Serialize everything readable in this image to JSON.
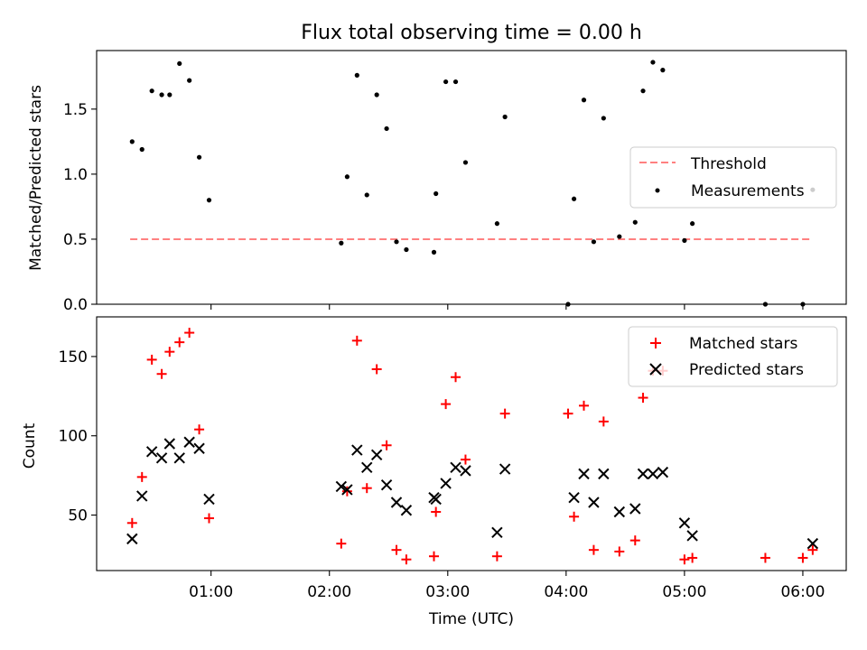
{
  "chart_data": [
    {
      "type": "scatter",
      "title": "Flux total observing time = 0.00 h",
      "xlabel": "",
      "ylabel": "Matched/Predicted stars",
      "ylim": [
        0,
        1.95
      ],
      "xlim": [
        "00:02",
        "06:22"
      ],
      "yticks": [
        0.0,
        0.5,
        1.0,
        1.5
      ],
      "ytick_labels": [
        "0.0",
        "0.5",
        "1.0",
        "1.5"
      ],
      "legend_position": "center-right",
      "grid": false,
      "series": [
        {
          "name": "Threshold",
          "kind": "dashed-line",
          "color": "#ff8080",
          "points": [
            {
              "x": "00:19",
              "y": 0.5
            },
            {
              "x": "06:05",
              "y": 0.5
            }
          ]
        },
        {
          "name": "Measurements",
          "kind": "dot",
          "color": "#000000",
          "points": [
            {
              "x": "00:20",
              "y": 1.25
            },
            {
              "x": "00:25",
              "y": 1.19
            },
            {
              "x": "00:30",
              "y": 1.64
            },
            {
              "x": "00:35",
              "y": 1.61
            },
            {
              "x": "00:39",
              "y": 1.61
            },
            {
              "x": "00:44",
              "y": 1.85
            },
            {
              "x": "00:49",
              "y": 1.72
            },
            {
              "x": "00:54",
              "y": 1.13
            },
            {
              "x": "00:59",
              "y": 0.8
            },
            {
              "x": "02:06",
              "y": 0.47
            },
            {
              "x": "02:09",
              "y": 0.98
            },
            {
              "x": "02:14",
              "y": 1.76
            },
            {
              "x": "02:19",
              "y": 0.84
            },
            {
              "x": "02:24",
              "y": 1.61
            },
            {
              "x": "02:29",
              "y": 1.35
            },
            {
              "x": "02:34",
              "y": 0.48
            },
            {
              "x": "02:39",
              "y": 0.42
            },
            {
              "x": "02:53",
              "y": 0.4
            },
            {
              "x": "02:54",
              "y": 0.85
            },
            {
              "x": "02:59",
              "y": 1.71
            },
            {
              "x": "03:04",
              "y": 1.71
            },
            {
              "x": "03:09",
              "y": 1.09
            },
            {
              "x": "03:25",
              "y": 0.62
            },
            {
              "x": "03:29",
              "y": 1.44
            },
            {
              "x": "04:01",
              "y": 0.0
            },
            {
              "x": "04:04",
              "y": 0.81
            },
            {
              "x": "04:09",
              "y": 1.57
            },
            {
              "x": "04:14",
              "y": 0.48
            },
            {
              "x": "04:19",
              "y": 1.43
            },
            {
              "x": "04:27",
              "y": 0.52
            },
            {
              "x": "04:35",
              "y": 0.63
            },
            {
              "x": "04:39",
              "y": 1.64
            },
            {
              "x": "04:44",
              "y": 1.86
            },
            {
              "x": "04:49",
              "y": 1.8
            },
            {
              "x": "05:00",
              "y": 0.49
            },
            {
              "x": "05:04",
              "y": 0.62
            },
            {
              "x": "05:41",
              "y": 0.0
            },
            {
              "x": "06:00",
              "y": 0.0
            },
            {
              "x": "06:05",
              "y": 0.88
            }
          ]
        }
      ]
    },
    {
      "type": "scatter",
      "title": "",
      "xlabel": "Time (UTC)",
      "ylabel": "Count",
      "ylim": [
        15,
        175
      ],
      "xlim": [
        "00:02",
        "06:22"
      ],
      "yticks": [
        50,
        100,
        150
      ],
      "ytick_labels": [
        "50",
        "100",
        "150"
      ],
      "xticks": [
        "01:00",
        "02:00",
        "03:00",
        "04:00",
        "05:00",
        "06:00"
      ],
      "xtick_labels": [
        "01:00",
        "02:00",
        "03:00",
        "04:00",
        "05:00",
        "06:00"
      ],
      "legend_position": "top-right",
      "grid": false,
      "series": [
        {
          "name": "Matched stars",
          "marker": "plus",
          "color": "#ff0000",
          "points": [
            {
              "x": "00:20",
              "y": 45
            },
            {
              "x": "00:25",
              "y": 74
            },
            {
              "x": "00:30",
              "y": 148
            },
            {
              "x": "00:35",
              "y": 139
            },
            {
              "x": "00:39",
              "y": 153
            },
            {
              "x": "00:44",
              "y": 159
            },
            {
              "x": "00:49",
              "y": 165
            },
            {
              "x": "00:54",
              "y": 104
            },
            {
              "x": "00:59",
              "y": 48
            },
            {
              "x": "02:06",
              "y": 32
            },
            {
              "x": "02:09",
              "y": 65
            },
            {
              "x": "02:14",
              "y": 160
            },
            {
              "x": "02:19",
              "y": 67
            },
            {
              "x": "02:24",
              "y": 142
            },
            {
              "x": "02:29",
              "y": 94
            },
            {
              "x": "02:34",
              "y": 28
            },
            {
              "x": "02:39",
              "y": 22
            },
            {
              "x": "02:53",
              "y": 24
            },
            {
              "x": "02:54",
              "y": 52
            },
            {
              "x": "02:59",
              "y": 120
            },
            {
              "x": "03:04",
              "y": 137
            },
            {
              "x": "03:09",
              "y": 85
            },
            {
              "x": "03:25",
              "y": 24
            },
            {
              "x": "03:29",
              "y": 114
            },
            {
              "x": "04:01",
              "y": 114
            },
            {
              "x": "04:04",
              "y": 49
            },
            {
              "x": "04:09",
              "y": 119
            },
            {
              "x": "04:14",
              "y": 28
            },
            {
              "x": "04:19",
              "y": 109
            },
            {
              "x": "04:27",
              "y": 27
            },
            {
              "x": "04:35",
              "y": 34
            },
            {
              "x": "04:39",
              "y": 124
            },
            {
              "x": "04:44",
              "y": 141
            },
            {
              "x": "04:49",
              "y": 141
            },
            {
              "x": "05:00",
              "y": 22
            },
            {
              "x": "05:04",
              "y": 23
            },
            {
              "x": "05:41",
              "y": 23
            },
            {
              "x": "06:00",
              "y": 23
            },
            {
              "x": "06:05",
              "y": 28
            }
          ]
        },
        {
          "name": "Predicted stars",
          "marker": "x",
          "color": "#000000",
          "points": [
            {
              "x": "00:20",
              "y": 35
            },
            {
              "x": "00:25",
              "y": 62
            },
            {
              "x": "00:30",
              "y": 90
            },
            {
              "x": "00:35",
              "y": 86
            },
            {
              "x": "00:39",
              "y": 95
            },
            {
              "x": "00:44",
              "y": 86
            },
            {
              "x": "00:49",
              "y": 96
            },
            {
              "x": "00:54",
              "y": 92
            },
            {
              "x": "00:59",
              "y": 60
            },
            {
              "x": "02:06",
              "y": 68
            },
            {
              "x": "02:09",
              "y": 66
            },
            {
              "x": "02:14",
              "y": 91
            },
            {
              "x": "02:19",
              "y": 80
            },
            {
              "x": "02:24",
              "y": 88
            },
            {
              "x": "02:29",
              "y": 69
            },
            {
              "x": "02:34",
              "y": 58
            },
            {
              "x": "02:39",
              "y": 53
            },
            {
              "x": "02:53",
              "y": 61
            },
            {
              "x": "02:54",
              "y": 60
            },
            {
              "x": "02:59",
              "y": 70
            },
            {
              "x": "03:04",
              "y": 80
            },
            {
              "x": "03:09",
              "y": 78
            },
            {
              "x": "03:25",
              "y": 39
            },
            {
              "x": "03:29",
              "y": 79
            },
            {
              "x": "04:04",
              "y": 61
            },
            {
              "x": "04:09",
              "y": 76
            },
            {
              "x": "04:14",
              "y": 58
            },
            {
              "x": "04:19",
              "y": 76
            },
            {
              "x": "04:27",
              "y": 52
            },
            {
              "x": "04:35",
              "y": 54
            },
            {
              "x": "04:39",
              "y": 76
            },
            {
              "x": "04:44",
              "y": 76
            },
            {
              "x": "04:49",
              "y": 77
            },
            {
              "x": "05:00",
              "y": 45
            },
            {
              "x": "05:04",
              "y": 37
            },
            {
              "x": "06:05",
              "y": 32
            }
          ]
        }
      ]
    }
  ]
}
